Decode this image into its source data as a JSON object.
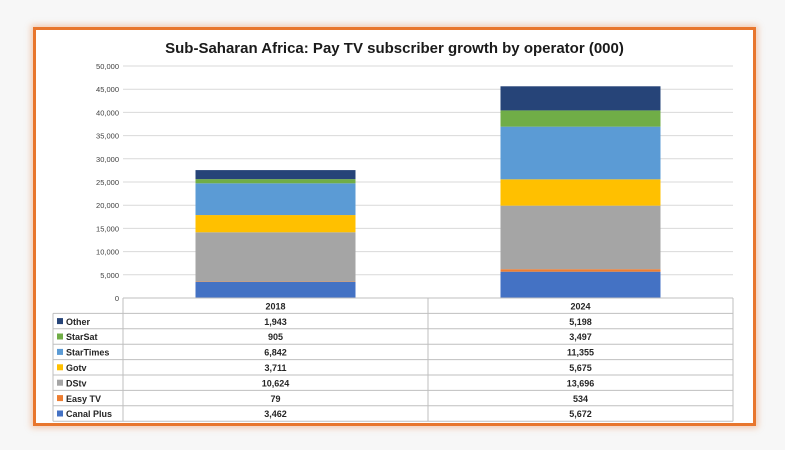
{
  "chart_data": {
    "type": "bar",
    "stacked": true,
    "title": "Sub-Saharan Africa: Pay TV subscriber growth by operator (000)",
    "categories": [
      "2018",
      "2024"
    ],
    "ylim": [
      0,
      50000
    ],
    "yticks": [
      "0",
      "5,000",
      "10,000",
      "15,000",
      "20,000",
      "25,000",
      "30,000",
      "35,000",
      "40,000",
      "45,000",
      "50,000"
    ],
    "grid": true,
    "legend": "data table below chart",
    "series": [
      {
        "name": "Canal Plus",
        "color": "#4472c4",
        "values": [
          3462,
          5672
        ],
        "labels": [
          "3,462",
          "5,672"
        ]
      },
      {
        "name": "Easy TV",
        "color": "#ed7d31",
        "values": [
          79,
          534
        ],
        "labels": [
          "79",
          "534"
        ]
      },
      {
        "name": "DStv",
        "color": "#a5a5a5",
        "values": [
          10624,
          13696
        ],
        "labels": [
          "10,624",
          "13,696"
        ]
      },
      {
        "name": "Gotv",
        "color": "#ffc000",
        "values": [
          3711,
          5675
        ],
        "labels": [
          "3,711",
          "5,675"
        ]
      },
      {
        "name": "StarTimes",
        "color": "#5b9bd5",
        "values": [
          6842,
          11355
        ],
        "labels": [
          "6,842",
          "11,355"
        ]
      },
      {
        "name": "StarSat",
        "color": "#70ad47",
        "values": [
          905,
          3497
        ],
        "labels": [
          "905",
          "3,497"
        ]
      },
      {
        "name": "Other",
        "color": "#264478",
        "values": [
          1943,
          5198
        ],
        "labels": [
          "1,943",
          "5,198"
        ]
      }
    ]
  }
}
